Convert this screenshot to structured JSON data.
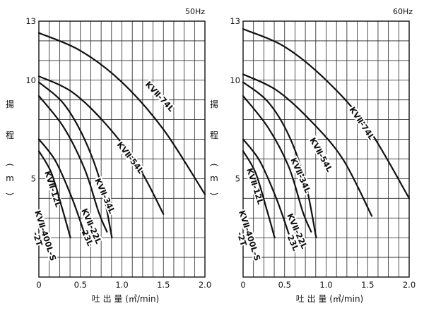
{
  "y_axis_label": [
    "揚",
    "程",
    "(",
    "m",
    ")"
  ],
  "x_axis_label": "吐 出 量 (㎥/min)",
  "chart_data": [
    {
      "type": "line",
      "frequency": "50Hz",
      "xlim": [
        0,
        2.0
      ],
      "ylim": [
        0,
        13
      ],
      "x_tick_labels": [
        "0",
        "0.5",
        "1.0",
        "1.5",
        "2.0"
      ],
      "y_tick_labels": [
        "5",
        "10",
        "13"
      ],
      "series": [
        {
          "name": "KVⅡ-74L",
          "label_lines": [
            "KVⅡ-74L"
          ],
          "points": [
            [
              0,
              12.4
            ],
            [
              0.5,
              11.5
            ],
            [
              1.0,
              9.9
            ],
            [
              1.5,
              7.5
            ],
            [
              2.0,
              4.2
            ]
          ]
        },
        {
          "name": "KVⅡ-54L",
          "label_lines": [
            "KVⅡ-54L"
          ],
          "points": [
            [
              0,
              10.2
            ],
            [
              0.4,
              9.4
            ],
            [
              0.8,
              7.8
            ],
            [
              1.2,
              5.6
            ],
            [
              1.5,
              3.2
            ]
          ]
        },
        {
          "name": "KVⅡ-34L",
          "label_lines": [
            "KVⅡ-34L"
          ],
          "points": [
            [
              0,
              9.9
            ],
            [
              0.3,
              8.8
            ],
            [
              0.55,
              7.0
            ],
            [
              0.75,
              4.7
            ],
            [
              0.88,
              2.0
            ]
          ]
        },
        {
          "name": "KVⅡ-22L/23L",
          "label_lines": [
            "KVⅡ-22L",
            "23L"
          ],
          "points": [
            [
              0,
              9.2
            ],
            [
              0.3,
              7.6
            ],
            [
              0.55,
              5.5
            ],
            [
              0.72,
              3.3
            ],
            [
              0.82,
              2.3
            ]
          ]
        },
        {
          "name": "KVⅡ-12L",
          "label_lines": [
            "KVⅡ-12L"
          ],
          "points": [
            [
              0,
              7.0
            ],
            [
              0.2,
              5.9
            ],
            [
              0.4,
              4.0
            ],
            [
              0.55,
              2.2
            ]
          ]
        },
        {
          "name": "KVⅡ-400L-S/2T",
          "label_lines": [
            "KVⅡ-400L-S",
            "-2T"
          ],
          "points": [
            [
              0,
              6.4
            ],
            [
              0.15,
              5.3
            ],
            [
              0.28,
              3.5
            ],
            [
              0.38,
              2.0
            ]
          ]
        }
      ]
    },
    {
      "type": "line",
      "frequency": "60Hz",
      "xlim": [
        0,
        2.0
      ],
      "ylim": [
        0,
        13
      ],
      "x_tick_labels": [
        "0",
        "0.5",
        "1.0",
        "1.5",
        "2.0"
      ],
      "y_tick_labels": [
        "5",
        "10",
        "13"
      ],
      "series": [
        {
          "name": "KVⅡ-74L",
          "label_lines": [
            "KVⅡ-74L"
          ],
          "points": [
            [
              0,
              12.6
            ],
            [
              0.5,
              11.7
            ],
            [
              1.0,
              10.0
            ],
            [
              1.5,
              7.6
            ],
            [
              2.0,
              4.0
            ]
          ]
        },
        {
          "name": "KVⅡ-54L",
          "label_lines": [
            "KVⅡ-54L"
          ],
          "points": [
            [
              0,
              10.3
            ],
            [
              0.4,
              9.5
            ],
            [
              0.8,
              8.0
            ],
            [
              1.2,
              6.0
            ],
            [
              1.55,
              3.1
            ]
          ]
        },
        {
          "name": "KVⅡ-34L",
          "label_lines": [
            "KVⅡ-34L"
          ],
          "points": [
            [
              0,
              9.9
            ],
            [
              0.3,
              8.9
            ],
            [
              0.55,
              7.2
            ],
            [
              0.75,
              4.8
            ],
            [
              0.88,
              2.0
            ]
          ]
        },
        {
          "name": "KVⅡ-22L/23L",
          "label_lines": [
            "KVⅡ-22L",
            "23L"
          ],
          "points": [
            [
              0,
              9.2
            ],
            [
              0.3,
              7.6
            ],
            [
              0.55,
              5.6
            ],
            [
              0.72,
              3.3
            ],
            [
              0.82,
              2.3
            ]
          ]
        },
        {
          "name": "KVⅡ-12L",
          "label_lines": [
            "KVⅡ-12L"
          ],
          "points": [
            [
              0,
              7.0
            ],
            [
              0.2,
              5.9
            ],
            [
              0.4,
              4.0
            ],
            [
              0.55,
              2.2
            ]
          ]
        },
        {
          "name": "KVⅡ-400L-S/2T",
          "label_lines": [
            "KVⅡ-400L-S",
            "-2T"
          ],
          "points": [
            [
              0,
              6.4
            ],
            [
              0.15,
              5.3
            ],
            [
              0.28,
              3.5
            ],
            [
              0.38,
              2.0
            ]
          ]
        }
      ]
    }
  ]
}
